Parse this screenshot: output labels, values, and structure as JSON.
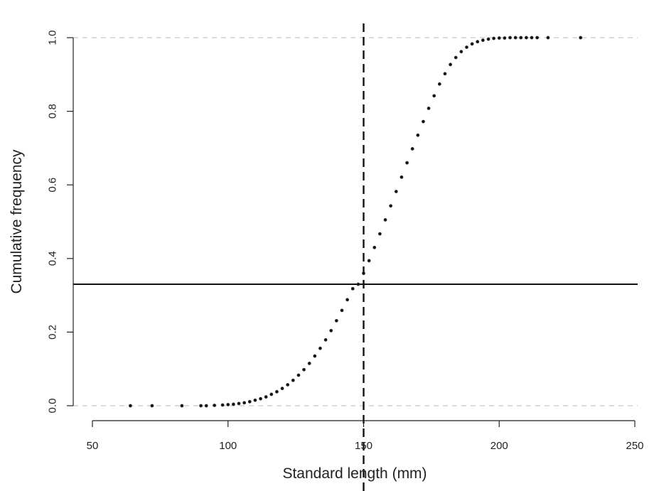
{
  "chart_data": {
    "type": "scatter",
    "title": "",
    "xlabel": "Standard length (mm)",
    "ylabel": "Cumulative frequency",
    "xlim": [
      50,
      250
    ],
    "ylim": [
      0,
      1
    ],
    "x_ticks": [
      50,
      100,
      150,
      200,
      250
    ],
    "y_ticks": [
      0.0,
      0.2,
      0.4,
      0.6,
      0.8,
      1.0
    ],
    "x_tick_labels": [
      "50",
      "100",
      "150",
      "200",
      "250"
    ],
    "y_tick_labels": [
      "0.0",
      "0.2",
      "0.4",
      "0.6",
      "0.8",
      "1.0"
    ],
    "grid": false,
    "reference_lines": {
      "horizontal_dashed_gray": [
        0,
        1
      ],
      "horizontal_solid": 0.33,
      "vertical_dashed": 150
    },
    "series": [
      {
        "x": [
          64,
          72,
          83,
          90,
          92,
          95,
          98,
          100,
          102,
          104,
          106,
          108,
          110,
          112,
          114,
          116,
          118,
          120,
          122,
          124,
          126,
          128,
          130,
          132,
          134,
          136,
          138,
          140,
          142,
          144,
          146,
          148,
          150,
          152,
          154,
          156,
          158,
          160,
          162,
          164,
          166,
          168,
          170,
          172,
          174,
          176,
          178,
          180,
          182,
          184,
          186,
          188,
          190,
          192,
          194,
          196,
          198,
          200,
          202,
          204,
          206,
          208,
          210,
          212,
          214,
          218,
          230
        ],
        "values": [
          0.0,
          0.0,
          0.0,
          0.0,
          0.0,
          0.001,
          0.002,
          0.003,
          0.004,
          0.006,
          0.008,
          0.011,
          0.015,
          0.019,
          0.024,
          0.031,
          0.038,
          0.047,
          0.057,
          0.069,
          0.083,
          0.098,
          0.115,
          0.135,
          0.156,
          0.179,
          0.204,
          0.231,
          0.259,
          0.288,
          0.318,
          0.33,
          0.36,
          0.394,
          0.43,
          0.467,
          0.505,
          0.543,
          0.582,
          0.621,
          0.66,
          0.698,
          0.735,
          0.772,
          0.808,
          0.842,
          0.874,
          0.902,
          0.927,
          0.946,
          0.962,
          0.974,
          0.983,
          0.989,
          0.993,
          0.996,
          0.998,
          0.999,
          0.999,
          1.0,
          1.0,
          1.0,
          1.0,
          1.0,
          1.0,
          1.0,
          1.0
        ]
      }
    ]
  }
}
